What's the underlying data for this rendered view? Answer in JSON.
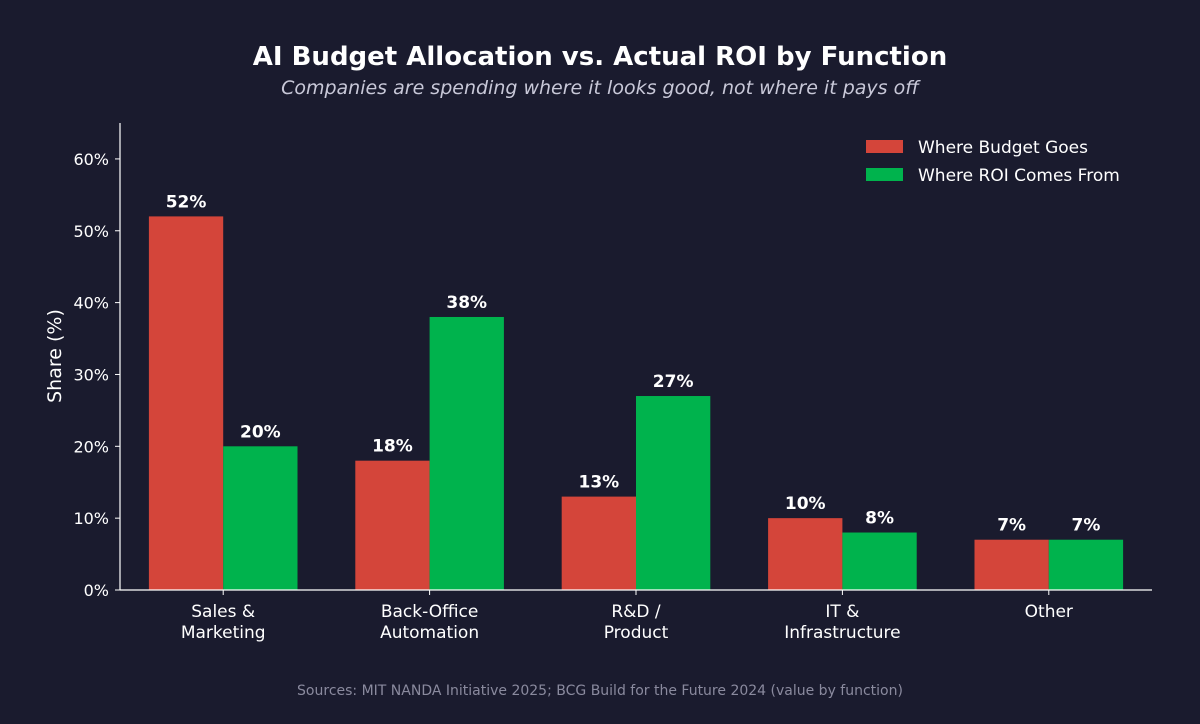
{
  "chart_data": {
    "type": "bar",
    "title": "AI Budget Allocation vs. Actual ROI by Function",
    "subtitle": "Companies are spending where it looks good, not where it pays off",
    "xlabel": "",
    "ylabel": "Share (%)",
    "ylim": [
      0,
      65
    ],
    "yticks": [
      0,
      10,
      20,
      30,
      40,
      50,
      60
    ],
    "ytick_labels": [
      "0%",
      "10%",
      "20%",
      "30%",
      "40%",
      "50%",
      "60%"
    ],
    "categories": [
      [
        "Sales &",
        "Marketing"
      ],
      [
        "Back-Office",
        "Automation"
      ],
      [
        "R&D /",
        "Product"
      ],
      [
        "IT &",
        "Infrastructure"
      ],
      [
        "Other"
      ]
    ],
    "series": [
      {
        "name": "Where Budget Goes",
        "color": "#d4453a",
        "values": [
          52,
          18,
          13,
          10,
          7
        ],
        "labels": [
          "52%",
          "18%",
          "13%",
          "10%",
          "7%"
        ]
      },
      {
        "name": "Where ROI Comes From",
        "color": "#00b34d",
        "values": [
          20,
          38,
          27,
          8,
          7
        ],
        "labels": [
          "20%",
          "38%",
          "27%",
          "8%",
          "7%"
        ]
      }
    ],
    "legend_position": "top-right",
    "grid": false,
    "source": "Sources: MIT NANDA Initiative 2025; BCG Build for the Future 2024 (value by function)",
    "colors": {
      "background": "#1a1b2e",
      "text": "#ffffff",
      "subtitle": "#c8c8d8",
      "source": "#8a8a9e"
    }
  }
}
